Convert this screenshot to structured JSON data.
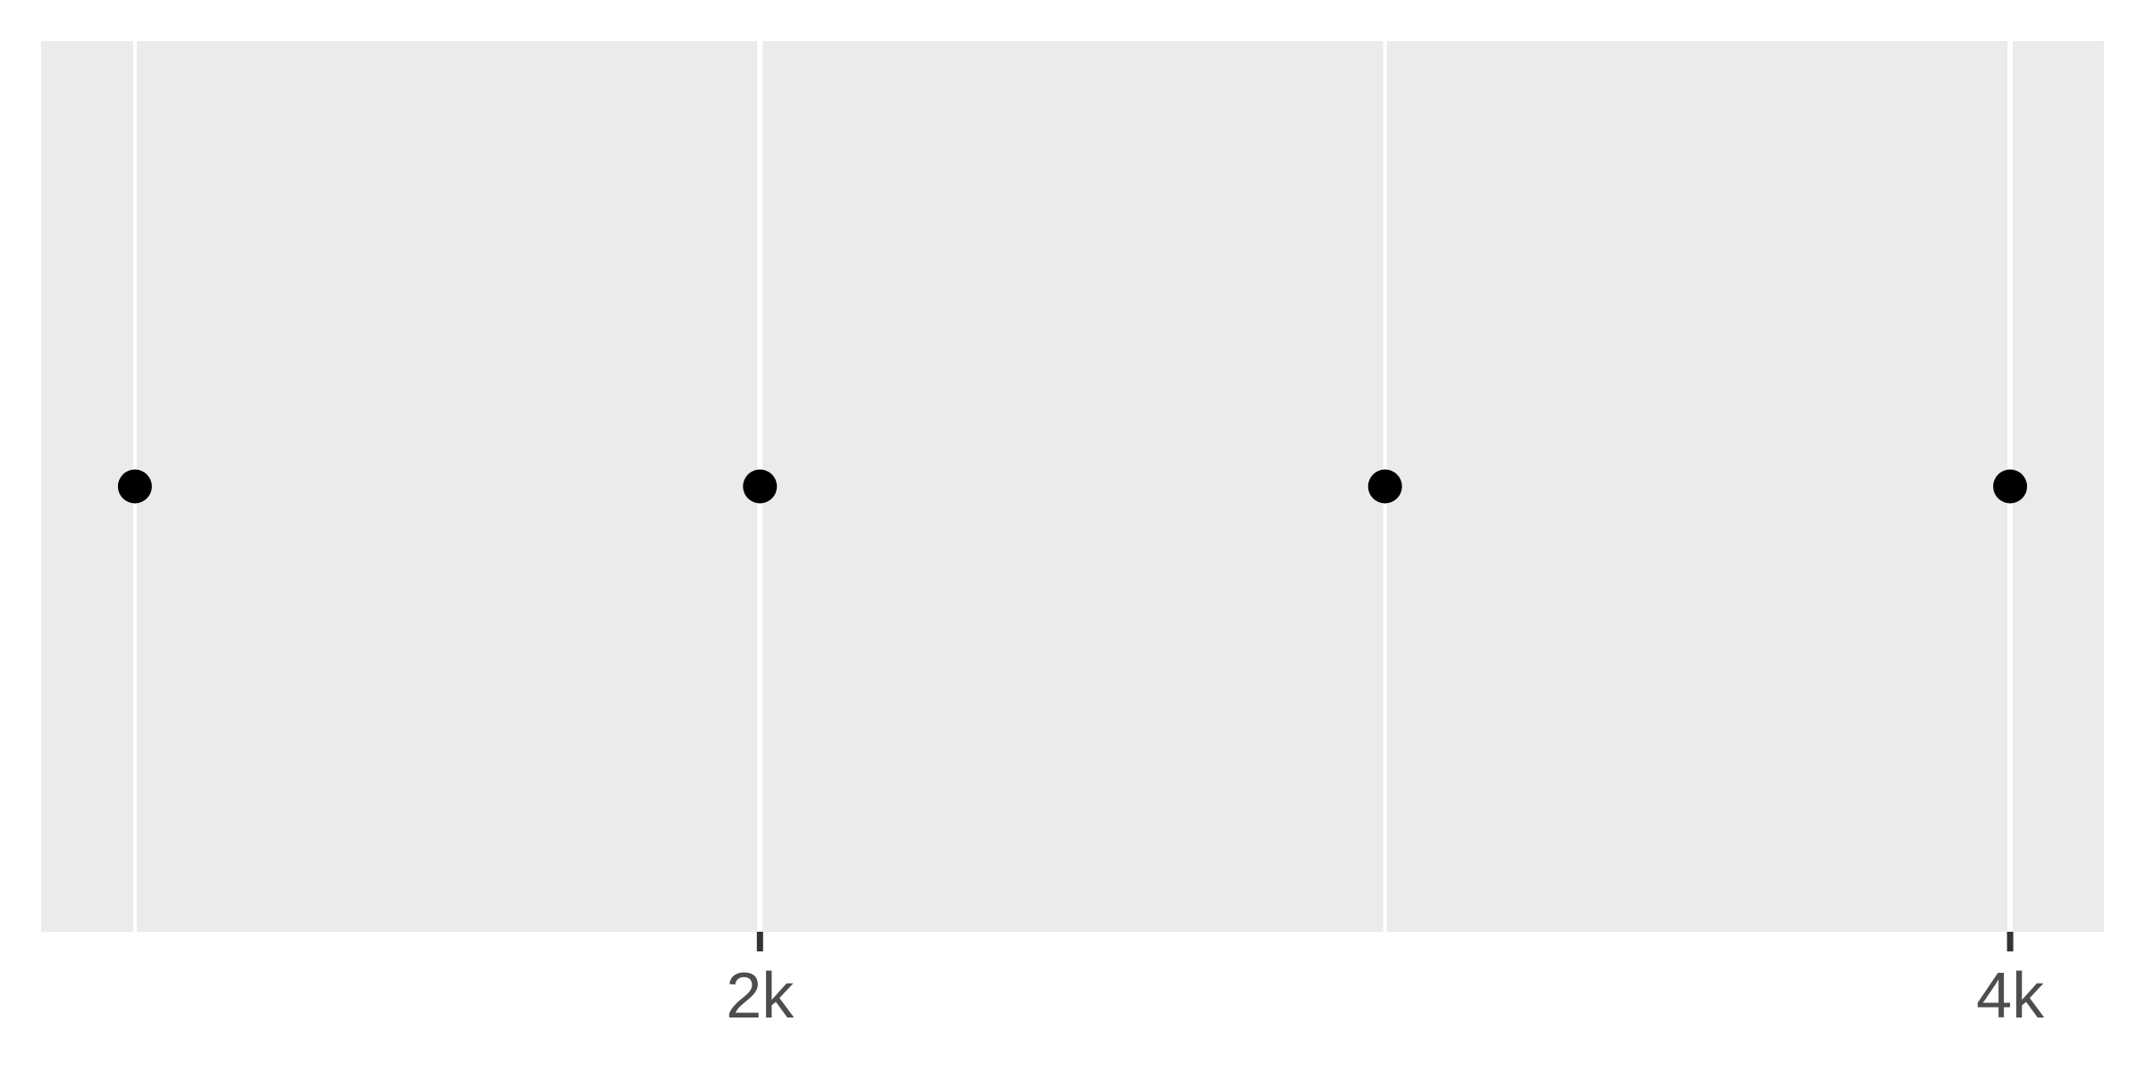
{
  "chart_data": {
    "type": "scatter",
    "title": "",
    "xlabel": "",
    "ylabel": "",
    "x": [
      1000,
      2000,
      3000,
      4000
    ],
    "y": [
      1,
      1,
      1,
      1
    ],
    "xlim": [
      850,
      4150
    ],
    "ylim": [
      0,
      2
    ],
    "x_ticks": [
      2000,
      4000
    ],
    "x_tick_labels": [
      "2k",
      "4k"
    ],
    "x_minor_gridlines": [
      1000,
      3000
    ],
    "grid": true,
    "legend": "none",
    "colors": {
      "panel": "#ebebeb",
      "grid": "#ffffff",
      "point": "#000000",
      "tick": "#333333",
      "tick_label": "#4d4d4d"
    }
  }
}
